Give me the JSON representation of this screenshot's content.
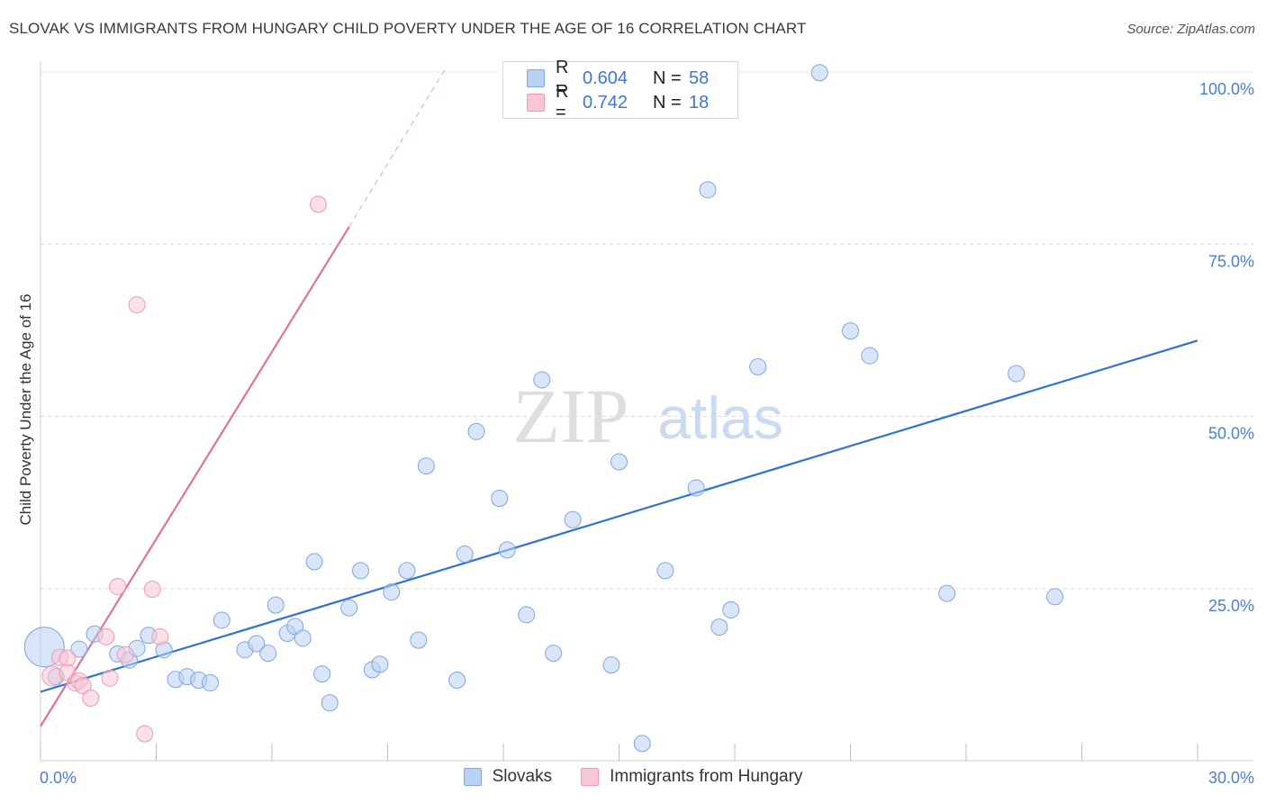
{
  "header": {
    "title": "SLOVAK VS IMMIGRANTS FROM HUNGARY CHILD POVERTY UNDER THE AGE OF 16 CORRELATION CHART",
    "source": "Source: ZipAtlas.com"
  },
  "watermark": {
    "zip": "ZIP",
    "atlas": "atlas"
  },
  "legend": {
    "rows": [
      {
        "r_label": "R =",
        "r_value": "0.604",
        "n_label": "N =",
        "n_value": "58",
        "color": "#b9d1f4",
        "border": "#7fa6e0"
      },
      {
        "r_label": "R =",
        "r_value": "0.742",
        "n_label": "N =",
        "n_value": "18",
        "color": "#f9c6d5",
        "border": "#ee9ab3"
      }
    ]
  },
  "bottom_legend": {
    "items": [
      {
        "label": "Slovaks",
        "color": "#b9d1f4",
        "border": "#7fa6e0"
      },
      {
        "label": "Immigrants from Hungary",
        "color": "#f9c6d5",
        "border": "#ee9ab3"
      }
    ]
  },
  "chart_data": {
    "type": "scatter",
    "title": "SLOVAK VS IMMIGRANTS FROM HUNGARY CHILD POVERTY UNDER THE AGE OF 16 CORRELATION CHART",
    "xlabel": "",
    "ylabel": "Child Poverty Under the Age of 16",
    "xlim": [
      0,
      30
    ],
    "ylim": [
      0,
      102
    ],
    "x_tick_labels": [
      {
        "value": 0,
        "label": "0.0%"
      },
      {
        "value": 30,
        "label": "30.0%"
      }
    ],
    "y_tick_labels": [
      {
        "value": 25,
        "label": "25.0%"
      },
      {
        "value": 50,
        "label": "50.0%"
      },
      {
        "value": 75,
        "label": "75.0%"
      },
      {
        "value": 100,
        "label": "100.0%"
      }
    ],
    "x_minor_ticks": [
      0,
      3,
      6,
      9,
      12,
      15,
      18,
      21,
      24,
      27,
      30
    ],
    "grid": true,
    "series": [
      {
        "name": "Slovaks",
        "color": "#b9d1f4",
        "stroke": "#7fa6e0",
        "trend_color": "#2f74d0",
        "trend": {
          "x0": 0,
          "y0": 10.0,
          "x1": 30,
          "y1": 61.0
        },
        "points": [
          [
            0.1,
            16.5,
            22
          ],
          [
            0.4,
            12.2,
            9
          ],
          [
            1.0,
            16.2,
            9
          ],
          [
            1.4,
            18.4,
            9
          ],
          [
            2.0,
            15.5,
            9
          ],
          [
            2.3,
            14.6,
            9
          ],
          [
            2.5,
            16.3,
            9
          ],
          [
            2.8,
            18.2,
            9
          ],
          [
            3.2,
            16.1,
            9
          ],
          [
            3.5,
            11.8,
            9
          ],
          [
            3.8,
            12.2,
            9
          ],
          [
            4.1,
            11.7,
            9
          ],
          [
            4.4,
            11.3,
            9
          ],
          [
            4.7,
            20.4,
            9
          ],
          [
            5.3,
            16.1,
            9
          ],
          [
            5.6,
            17.0,
            9
          ],
          [
            5.9,
            15.6,
            9
          ],
          [
            6.1,
            22.6,
            9
          ],
          [
            6.4,
            18.5,
            9
          ],
          [
            6.6,
            19.5,
            9
          ],
          [
            6.8,
            17.8,
            9
          ],
          [
            7.1,
            28.9,
            9
          ],
          [
            7.3,
            12.6,
            9
          ],
          [
            7.5,
            8.4,
            9
          ],
          [
            8.0,
            22.2,
            9
          ],
          [
            8.3,
            27.6,
            9
          ],
          [
            8.6,
            13.2,
            9
          ],
          [
            8.8,
            14.0,
            9
          ],
          [
            9.1,
            24.5,
            9
          ],
          [
            9.5,
            27.6,
            9
          ],
          [
            9.8,
            17.5,
            9
          ],
          [
            10.0,
            42.8,
            9
          ],
          [
            10.8,
            11.7,
            9
          ],
          [
            11.0,
            30.0,
            9
          ],
          [
            11.3,
            47.8,
            9
          ],
          [
            11.9,
            38.1,
            9
          ],
          [
            12.1,
            30.6,
            9
          ],
          [
            12.6,
            21.2,
            9
          ],
          [
            13.0,
            55.3,
            9
          ],
          [
            13.3,
            15.6,
            9
          ],
          [
            13.8,
            35.0,
            9
          ],
          [
            14.8,
            13.9,
            9
          ],
          [
            15.0,
            43.4,
            9
          ],
          [
            15.6,
            2.5,
            9
          ],
          [
            16.2,
            27.6,
            9
          ],
          [
            17.0,
            39.6,
            9
          ],
          [
            17.3,
            82.9,
            9
          ],
          [
            17.6,
            19.4,
            9
          ],
          [
            17.9,
            21.9,
            9
          ],
          [
            18.6,
            57.2,
            9
          ],
          [
            20.2,
            99.9,
            9
          ],
          [
            21.0,
            62.4,
            9
          ],
          [
            21.5,
            58.8,
            9
          ],
          [
            23.5,
            24.3,
            9
          ],
          [
            25.3,
            56.2,
            9
          ],
          [
            26.3,
            23.8,
            9
          ]
        ]
      },
      {
        "name": "Immigrants from Hungary",
        "color": "#f9c6d5",
        "stroke": "#ee9ab3",
        "trend_color": "#e3729a",
        "trend": {
          "x0": 0,
          "y0": 5.0,
          "x1": 8.0,
          "y1": 77.5
        },
        "trend_dashed": {
          "x0": 8.0,
          "y0": 77.5,
          "x1": 10.5,
          "y1": 100.5
        },
        "points": [
          [
            0.3,
            12.3,
            11
          ],
          [
            0.5,
            15.0,
            9
          ],
          [
            0.7,
            14.9,
            9
          ],
          [
            0.7,
            12.8,
            9
          ],
          [
            0.9,
            11.3,
            9
          ],
          [
            1.0,
            11.6,
            9
          ],
          [
            1.1,
            10.9,
            9
          ],
          [
            1.3,
            9.1,
            9
          ],
          [
            1.7,
            18.0,
            9
          ],
          [
            1.8,
            12.0,
            9
          ],
          [
            2.0,
            25.3,
            9
          ],
          [
            2.2,
            15.4,
            9
          ],
          [
            2.5,
            66.2,
            9
          ],
          [
            2.7,
            3.9,
            9
          ],
          [
            2.9,
            24.9,
            9
          ],
          [
            3.1,
            18.0,
            9
          ],
          [
            7.2,
            80.8,
            9
          ]
        ]
      }
    ]
  }
}
